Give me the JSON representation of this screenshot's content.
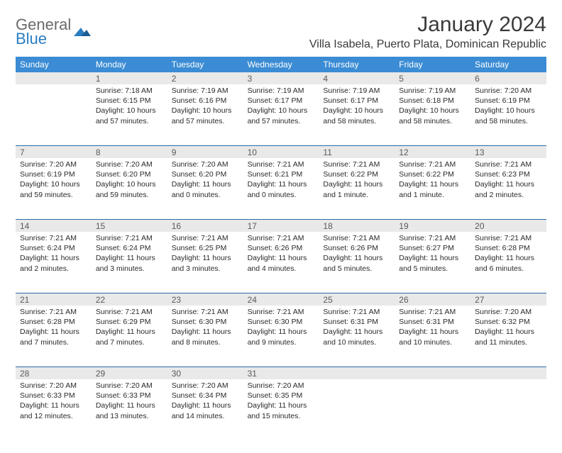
{
  "logo": {
    "text1": "General",
    "text2": "Blue",
    "mark_color": "#2a7dc0"
  },
  "title": "January 2024",
  "location": "Villa Isabela, Puerto Plata, Dominican Republic",
  "colors": {
    "header_bg": "#3b8cd4",
    "header_text": "#ffffff",
    "dayrow_bg": "#e9e9e9",
    "divider": "#2a6aa8"
  },
  "weekdays": [
    "Sunday",
    "Monday",
    "Tuesday",
    "Wednesday",
    "Thursday",
    "Friday",
    "Saturday"
  ],
  "weeks": [
    {
      "numbers": [
        "",
        "1",
        "2",
        "3",
        "4",
        "5",
        "6"
      ],
      "cells": [
        null,
        {
          "sunrise": "Sunrise: 7:18 AM",
          "sunset": "Sunset: 6:15 PM",
          "daylight": "Daylight: 10 hours and 57 minutes."
        },
        {
          "sunrise": "Sunrise: 7:19 AM",
          "sunset": "Sunset: 6:16 PM",
          "daylight": "Daylight: 10 hours and 57 minutes."
        },
        {
          "sunrise": "Sunrise: 7:19 AM",
          "sunset": "Sunset: 6:17 PM",
          "daylight": "Daylight: 10 hours and 57 minutes."
        },
        {
          "sunrise": "Sunrise: 7:19 AM",
          "sunset": "Sunset: 6:17 PM",
          "daylight": "Daylight: 10 hours and 58 minutes."
        },
        {
          "sunrise": "Sunrise: 7:19 AM",
          "sunset": "Sunset: 6:18 PM",
          "daylight": "Daylight: 10 hours and 58 minutes."
        },
        {
          "sunrise": "Sunrise: 7:20 AM",
          "sunset": "Sunset: 6:19 PM",
          "daylight": "Daylight: 10 hours and 58 minutes."
        }
      ]
    },
    {
      "numbers": [
        "7",
        "8",
        "9",
        "10",
        "11",
        "12",
        "13"
      ],
      "cells": [
        {
          "sunrise": "Sunrise: 7:20 AM",
          "sunset": "Sunset: 6:19 PM",
          "daylight": "Daylight: 10 hours and 59 minutes."
        },
        {
          "sunrise": "Sunrise: 7:20 AM",
          "sunset": "Sunset: 6:20 PM",
          "daylight": "Daylight: 10 hours and 59 minutes."
        },
        {
          "sunrise": "Sunrise: 7:20 AM",
          "sunset": "Sunset: 6:20 PM",
          "daylight": "Daylight: 11 hours and 0 minutes."
        },
        {
          "sunrise": "Sunrise: 7:21 AM",
          "sunset": "Sunset: 6:21 PM",
          "daylight": "Daylight: 11 hours and 0 minutes."
        },
        {
          "sunrise": "Sunrise: 7:21 AM",
          "sunset": "Sunset: 6:22 PM",
          "daylight": "Daylight: 11 hours and 1 minute."
        },
        {
          "sunrise": "Sunrise: 7:21 AM",
          "sunset": "Sunset: 6:22 PM",
          "daylight": "Daylight: 11 hours and 1 minute."
        },
        {
          "sunrise": "Sunrise: 7:21 AM",
          "sunset": "Sunset: 6:23 PM",
          "daylight": "Daylight: 11 hours and 2 minutes."
        }
      ]
    },
    {
      "numbers": [
        "14",
        "15",
        "16",
        "17",
        "18",
        "19",
        "20"
      ],
      "cells": [
        {
          "sunrise": "Sunrise: 7:21 AM",
          "sunset": "Sunset: 6:24 PM",
          "daylight": "Daylight: 11 hours and 2 minutes."
        },
        {
          "sunrise": "Sunrise: 7:21 AM",
          "sunset": "Sunset: 6:24 PM",
          "daylight": "Daylight: 11 hours and 3 minutes."
        },
        {
          "sunrise": "Sunrise: 7:21 AM",
          "sunset": "Sunset: 6:25 PM",
          "daylight": "Daylight: 11 hours and 3 minutes."
        },
        {
          "sunrise": "Sunrise: 7:21 AM",
          "sunset": "Sunset: 6:26 PM",
          "daylight": "Daylight: 11 hours and 4 minutes."
        },
        {
          "sunrise": "Sunrise: 7:21 AM",
          "sunset": "Sunset: 6:26 PM",
          "daylight": "Daylight: 11 hours and 5 minutes."
        },
        {
          "sunrise": "Sunrise: 7:21 AM",
          "sunset": "Sunset: 6:27 PM",
          "daylight": "Daylight: 11 hours and 5 minutes."
        },
        {
          "sunrise": "Sunrise: 7:21 AM",
          "sunset": "Sunset: 6:28 PM",
          "daylight": "Daylight: 11 hours and 6 minutes."
        }
      ]
    },
    {
      "numbers": [
        "21",
        "22",
        "23",
        "24",
        "25",
        "26",
        "27"
      ],
      "cells": [
        {
          "sunrise": "Sunrise: 7:21 AM",
          "sunset": "Sunset: 6:28 PM",
          "daylight": "Daylight: 11 hours and 7 minutes."
        },
        {
          "sunrise": "Sunrise: 7:21 AM",
          "sunset": "Sunset: 6:29 PM",
          "daylight": "Daylight: 11 hours and 7 minutes."
        },
        {
          "sunrise": "Sunrise: 7:21 AM",
          "sunset": "Sunset: 6:30 PM",
          "daylight": "Daylight: 11 hours and 8 minutes."
        },
        {
          "sunrise": "Sunrise: 7:21 AM",
          "sunset": "Sunset: 6:30 PM",
          "daylight": "Daylight: 11 hours and 9 minutes."
        },
        {
          "sunrise": "Sunrise: 7:21 AM",
          "sunset": "Sunset: 6:31 PM",
          "daylight": "Daylight: 11 hours and 10 minutes."
        },
        {
          "sunrise": "Sunrise: 7:21 AM",
          "sunset": "Sunset: 6:31 PM",
          "daylight": "Daylight: 11 hours and 10 minutes."
        },
        {
          "sunrise": "Sunrise: 7:20 AM",
          "sunset": "Sunset: 6:32 PM",
          "daylight": "Daylight: 11 hours and 11 minutes."
        }
      ]
    },
    {
      "numbers": [
        "28",
        "29",
        "30",
        "31",
        "",
        "",
        ""
      ],
      "cells": [
        {
          "sunrise": "Sunrise: 7:20 AM",
          "sunset": "Sunset: 6:33 PM",
          "daylight": "Daylight: 11 hours and 12 minutes."
        },
        {
          "sunrise": "Sunrise: 7:20 AM",
          "sunset": "Sunset: 6:33 PM",
          "daylight": "Daylight: 11 hours and 13 minutes."
        },
        {
          "sunrise": "Sunrise: 7:20 AM",
          "sunset": "Sunset: 6:34 PM",
          "daylight": "Daylight: 11 hours and 14 minutes."
        },
        {
          "sunrise": "Sunrise: 7:20 AM",
          "sunset": "Sunset: 6:35 PM",
          "daylight": "Daylight: 11 hours and 15 minutes."
        },
        null,
        null,
        null
      ]
    }
  ]
}
